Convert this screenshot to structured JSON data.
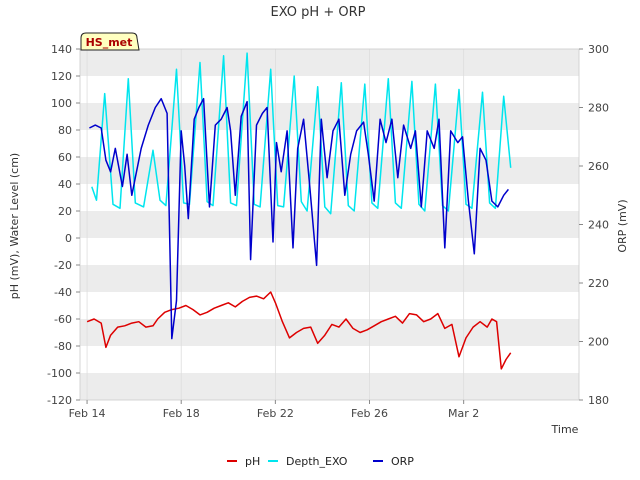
{
  "badge": "HS_met",
  "chart_data": {
    "type": "line",
    "title": "EXO pH + ORP",
    "xlabel": "Time",
    "ylabel": "pH (mV), Water Level (cm)",
    "ylabel_right": "ORP (mV)",
    "xlim": [
      -0.3,
      20.9
    ],
    "ylim": [
      -120,
      140
    ],
    "ylim_right": [
      180,
      300
    ],
    "x_unit": "days since Feb 14",
    "x_ticks": [
      {
        "value": 0,
        "label": "Feb 14"
      },
      {
        "value": 4,
        "label": "Feb 18"
      },
      {
        "value": 8,
        "label": "Feb 22"
      },
      {
        "value": 12,
        "label": "Feb 26"
      },
      {
        "value": 16,
        "label": "Mar 2"
      }
    ],
    "y_ticks": [
      -120,
      -100,
      -80,
      -60,
      -40,
      -20,
      0,
      20,
      40,
      60,
      80,
      100,
      120,
      140
    ],
    "y_ticks_right": [
      180,
      200,
      220,
      240,
      260,
      280,
      300
    ],
    "grid_bands": true,
    "legend_position": "bottom-center",
    "series": [
      {
        "name": "pH",
        "axis": "left",
        "color": "#dd0000",
        "x": [
          0.0,
          0.3,
          0.6,
          0.8,
          1.0,
          1.3,
          1.6,
          1.9,
          2.2,
          2.5,
          2.8,
          3.0,
          3.3,
          3.6,
          3.9,
          4.2,
          4.5,
          4.8,
          5.1,
          5.4,
          5.7,
          6.0,
          6.3,
          6.6,
          6.9,
          7.2,
          7.5,
          7.8,
          8.0,
          8.3,
          8.6,
          8.9,
          9.2,
          9.5,
          9.8,
          10.1,
          10.4,
          10.7,
          11.0,
          11.3,
          11.6,
          11.9,
          12.2,
          12.5,
          12.8,
          13.1,
          13.4,
          13.7,
          14.0,
          14.3,
          14.6,
          14.9,
          15.2,
          15.5,
          15.8,
          16.1,
          16.4,
          16.7,
          17.0,
          17.2,
          17.4,
          17.6,
          17.8,
          18.0
        ],
        "values": [
          -62,
          -60,
          -63,
          -81,
          -72,
          -66,
          -65,
          -63,
          -62,
          -66,
          -65,
          -60,
          -55,
          -53,
          -52,
          -50,
          -53,
          -57,
          -55,
          -52,
          -50,
          -48,
          -51,
          -47,
          -44,
          -43,
          -45,
          -40,
          -48,
          -62,
          -74,
          -70,
          -67,
          -66,
          -78,
          -72,
          -64,
          -66,
          -60,
          -67,
          -70,
          -68,
          -65,
          -62,
          -60,
          -58,
          -63,
          -56,
          -57,
          -62,
          -60,
          -56,
          -67,
          -64,
          -88,
          -74,
          -66,
          -62,
          -66,
          -60,
          -62,
          -97,
          -90,
          -85
        ]
      },
      {
        "name": "Depth_EXO",
        "axis": "left",
        "color": "#00e5ee",
        "x": [
          0.2,
          0.4,
          0.75,
          1.1,
          1.4,
          1.75,
          2.05,
          2.4,
          2.8,
          3.1,
          3.35,
          3.8,
          4.1,
          4.35,
          4.8,
          5.1,
          5.35,
          5.8,
          6.1,
          6.35,
          6.8,
          7.1,
          7.35,
          7.8,
          8.1,
          8.35,
          8.8,
          9.1,
          9.35,
          9.8,
          10.1,
          10.35,
          10.8,
          11.1,
          11.35,
          11.8,
          12.1,
          12.35,
          12.8,
          13.1,
          13.35,
          13.8,
          14.1,
          14.35,
          14.8,
          15.1,
          15.35,
          15.8,
          16.1,
          16.35,
          16.8,
          17.1,
          17.35,
          17.7,
          18.0
        ],
        "values": [
          38,
          28,
          107,
          25,
          22,
          118,
          26,
          23,
          65,
          28,
          24,
          125,
          26,
          25,
          130,
          27,
          24,
          135,
          26,
          24,
          137,
          25,
          23,
          125,
          24,
          23,
          120,
          27,
          20,
          112,
          23,
          18,
          115,
          24,
          20,
          114,
          26,
          22,
          118,
          26,
          22,
          116,
          25,
          20,
          114,
          24,
          20,
          110,
          25,
          22,
          108,
          26,
          22,
          105,
          52
        ]
      },
      {
        "name": "ORP",
        "axis": "right",
        "color": "#0000cc",
        "x": [
          0.1,
          0.35,
          0.6,
          0.8,
          1.0,
          1.2,
          1.5,
          1.7,
          1.9,
          2.05,
          2.3,
          2.6,
          2.9,
          3.15,
          3.4,
          3.6,
          3.8,
          4.0,
          4.15,
          4.3,
          4.55,
          4.75,
          4.95,
          5.2,
          5.45,
          5.7,
          5.95,
          6.1,
          6.3,
          6.55,
          6.8,
          6.95,
          7.2,
          7.45,
          7.65,
          7.9,
          8.05,
          8.25,
          8.5,
          8.75,
          8.95,
          9.2,
          9.45,
          9.75,
          9.95,
          10.2,
          10.45,
          10.7,
          10.95,
          11.2,
          11.45,
          11.75,
          11.95,
          12.2,
          12.45,
          12.7,
          12.95,
          13.2,
          13.45,
          13.75,
          13.95,
          14.2,
          14.45,
          14.75,
          14.95,
          15.2,
          15.45,
          15.75,
          15.95,
          16.2,
          16.45,
          16.7,
          16.95,
          17.2,
          17.45,
          17.7,
          17.9
        ],
        "values": [
          273,
          274,
          273,
          262,
          258,
          266,
          253,
          264,
          250,
          256,
          266,
          274,
          280,
          283,
          278,
          201,
          214,
          272,
          260,
          242,
          276,
          280,
          283,
          246,
          274,
          276,
          280,
          272,
          250,
          277,
          282,
          228,
          274,
          278,
          280,
          234,
          268,
          258,
          272,
          232,
          266,
          276,
          254,
          226,
          276,
          256,
          272,
          276,
          250,
          264,
          272,
          275,
          264,
          248,
          276,
          268,
          276,
          256,
          274,
          266,
          272,
          246,
          272,
          266,
          276,
          232,
          272,
          268,
          270,
          248,
          230,
          266,
          262,
          248,
          246,
          250,
          252
        ]
      }
    ]
  }
}
